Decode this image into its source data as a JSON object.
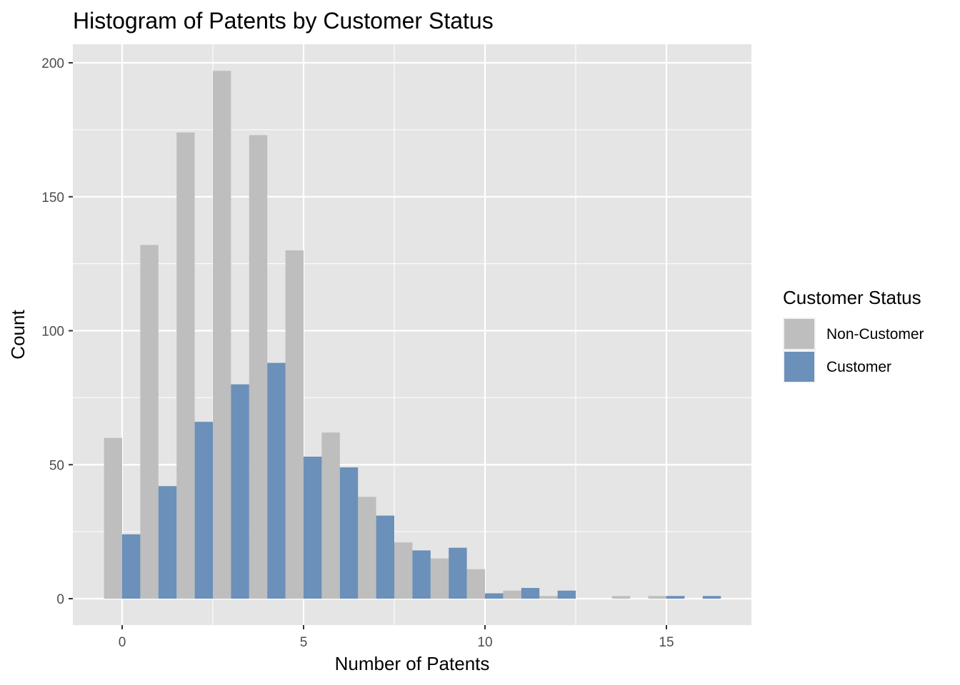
{
  "chart_data": {
    "type": "bar",
    "title": "Histogram of Patents by Customer Status",
    "xlabel": "Number of Patents",
    "ylabel": "Count",
    "xlim": [
      -1.3,
      17.3
    ],
    "ylim": [
      -9.8,
      207
    ],
    "x_ticks": [
      0,
      5,
      10,
      15
    ],
    "x_tick_labels": [
      "0",
      "5",
      "10",
      "15"
    ],
    "y_ticks": [
      0,
      50,
      100,
      150,
      200
    ],
    "y_tick_labels": [
      "0",
      "50",
      "100",
      "150",
      "200"
    ],
    "x": [
      0,
      1,
      2,
      3,
      4,
      5,
      6,
      7,
      8,
      9,
      10,
      11,
      12,
      13,
      14,
      15,
      16
    ],
    "series": [
      {
        "name": "Non-Customer",
        "color": "#bebebe",
        "values": [
          60,
          132,
          174,
          197,
          173,
          130,
          62,
          38,
          21,
          15,
          11,
          3,
          1,
          0,
          1,
          1,
          0
        ]
      },
      {
        "name": "Customer",
        "color": "#6b90b9",
        "values": [
          24,
          42,
          66,
          80,
          88,
          53,
          49,
          31,
          18,
          19,
          2,
          4,
          3,
          0,
          0,
          1,
          1
        ]
      }
    ],
    "grid": true,
    "panel_background": "#e5e5e5",
    "grid_color": "#ffffff",
    "legend": {
      "title": "Customer Status",
      "position": "right"
    }
  }
}
